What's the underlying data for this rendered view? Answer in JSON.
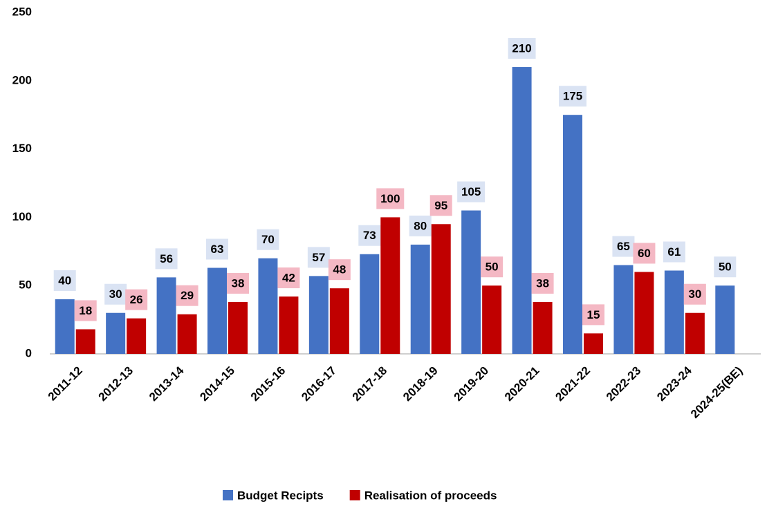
{
  "chart_data": {
    "type": "bar",
    "categories": [
      "2011-12",
      "2012-13",
      "2013-14",
      "2014-15",
      "2015-16",
      "2016-17",
      "2017-18",
      "2018-19",
      "2019-20",
      "2020-21",
      "2021-22",
      "2022-23",
      "2023-24",
      "2024-25(BE)"
    ],
    "series": [
      {
        "name": "Budget Recipts",
        "color": "#4472c4",
        "label_bg": "#dae3f3",
        "values": [
          40,
          30,
          56,
          63,
          70,
          57,
          73,
          80,
          105,
          210,
          175,
          65,
          61,
          50
        ]
      },
      {
        "name": "Realisation of proceeds",
        "color": "#c00000",
        "label_bg": "#f4b8c4",
        "values": [
          18,
          26,
          29,
          38,
          42,
          48,
          100,
          95,
          50,
          38,
          15,
          60,
          30,
          null
        ]
      }
    ],
    "ylim": [
      0,
      250
    ],
    "yticks": [
      0,
      50,
      100,
      150,
      200,
      250
    ],
    "grid": false,
    "legend": "bottom"
  }
}
